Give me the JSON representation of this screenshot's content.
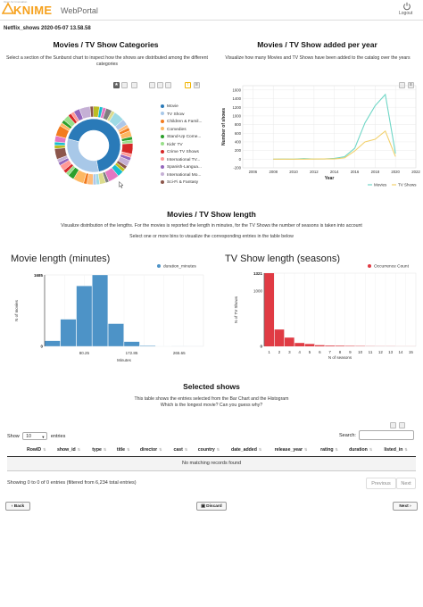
{
  "header": {
    "logo_tagline": "Open for Innovation",
    "logo_text": "KNIME",
    "logo_portal": "WebPortal",
    "logout_label": "Logout"
  },
  "doc_title": "Netflix_shows 2020-05-07 13.58.58",
  "categories": {
    "title": "Movies / TV Show Categories",
    "description": "Select a section of the Sunburst chart to inspect how the shows are distributed among the different categories",
    "legend": [
      {
        "label": "Movie",
        "color": "#2a7ab8"
      },
      {
        "label": "TV Show",
        "color": "#a8c8e8"
      },
      {
        "label": "Children & Famil...",
        "color": "#f27b1e"
      },
      {
        "label": "Comedies",
        "color": "#fdb863"
      },
      {
        "label": "Stand-Up Come...",
        "color": "#2ca02c"
      },
      {
        "label": "Kids' TV",
        "color": "#98df8a"
      },
      {
        "label": "Crime TV Shows",
        "color": "#d62728"
      },
      {
        "label": "International TV...",
        "color": "#ff9896"
      },
      {
        "label": "Spanish-Langua...",
        "color": "#9467bd"
      },
      {
        "label": "International Mo...",
        "color": "#c5b0d5"
      },
      {
        "label": "Sci-Fi & Fantasy",
        "color": "#8c564b"
      }
    ]
  },
  "added_chart": {
    "title": "Movies / TV Show added per year",
    "description": "Visualize how many Movies and TV Shows have been added to the catalog over the years",
    "chart_data": {
      "type": "line",
      "xlabel": "Year",
      "ylabel": "Number of shows",
      "xlim": [
        2005,
        2022
      ],
      "ylim": [
        -200,
        1700
      ],
      "x_ticks": [
        "2006",
        "2008",
        "2010",
        "2012",
        "2014",
        "2016",
        "2018",
        "2020",
        "2022"
      ],
      "y_ticks": [
        "-200",
        "0",
        "200",
        "400",
        "600",
        "800",
        "1000",
        "1200",
        "1400",
        "1600"
      ],
      "legend_position": "bottom-right",
      "series": [
        {
          "name": "Movies",
          "color": "#6fd6c6",
          "x": [
            2008,
            2009,
            2010,
            2011,
            2012,
            2013,
            2014,
            2015,
            2016,
            2017,
            2018,
            2019,
            2020
          ],
          "y": [
            1,
            2,
            1,
            13,
            4,
            6,
            19,
            56,
            253,
            839,
            1237,
            1497,
            130
          ]
        },
        {
          "name": "TV Shows",
          "color": "#f2d06b",
          "x": [
            2008,
            2009,
            2010,
            2011,
            2012,
            2013,
            2014,
            2015,
            2016,
            2017,
            2018,
            2019,
            2020
          ],
          "y": [
            1,
            0,
            0,
            0,
            3,
            6,
            6,
            30,
            190,
            400,
            460,
            650,
            60
          ]
        }
      ]
    }
  },
  "length_section": {
    "title": "Movies / TV Show length",
    "description1": "Visualize distribution of the lengths. For the movies is reported the length in minutes, for the TV Shows the number of seasons is taken into account",
    "description2": "Select one or more bins to visualize the corresponding entries in the table below"
  },
  "movie_hist": {
    "title": "Movie length (minutes)",
    "chart_data": {
      "type": "bar",
      "xlabel": "Minutes",
      "ylabel": "N of movies",
      "series_name": "duration_minutes",
      "color": "#4d93c7",
      "y_max_label": "1685",
      "y_zero_label": "0",
      "ylim": [
        0,
        1685
      ],
      "x_ticks": [
        "80.25",
        "172.85",
        "265.65"
      ],
      "bins": [
        {
          "x0": 3,
          "x1": 34,
          "v": 133
        },
        {
          "x0": 34,
          "x1": 65,
          "v": 640
        },
        {
          "x0": 65,
          "x1": 96,
          "v": 1425
        },
        {
          "x0": 96,
          "x1": 127,
          "v": 1685
        },
        {
          "x0": 127,
          "x1": 158,
          "v": 536
        },
        {
          "x0": 158,
          "x1": 189,
          "v": 112
        },
        {
          "x0": 189,
          "x1": 220,
          "v": 18
        },
        {
          "x0": 220,
          "x1": 251,
          "v": 5
        },
        {
          "x0": 251,
          "x1": 282,
          "v": 2
        },
        {
          "x0": 282,
          "x1": 313,
          "v": 1
        }
      ],
      "xlim": [
        3,
        313
      ]
    }
  },
  "tv_hist": {
    "title": "TV Show length (seasons)",
    "chart_data": {
      "type": "bar",
      "xlabel": "N of seasons",
      "ylabel": "N of TV Shows",
      "series_name": "Occurrence Count",
      "color": "#e03b44",
      "y_max_label": "1321",
      "y_tick_label": "1000",
      "y_zero_label": "0",
      "ylim": [
        0,
        1321
      ],
      "categories": [
        "1",
        "2",
        "3",
        "4",
        "5",
        "6",
        "7",
        "8",
        "9",
        "10",
        "11",
        "12",
        "13",
        "14",
        "15"
      ],
      "values": [
        1321,
        304,
        158,
        61,
        43,
        21,
        13,
        11,
        8,
        6,
        3,
        2,
        2,
        1,
        1
      ]
    }
  },
  "selected": {
    "title": "Selected shows",
    "description1": "This table shows the entries selected from the Bar Chart and the Histogram",
    "description2": "Which is the longest movie? Can you guess why?",
    "show_label": "Show",
    "show_value": "10",
    "entries_label": "entries",
    "search_label": "Search:",
    "columns": [
      "RowID",
      "show_id",
      "type",
      "title",
      "director",
      "cast",
      "country",
      "date_added",
      "release_year",
      "rating",
      "duration",
      "listed_in"
    ],
    "empty_message": "No matching records found",
    "info": "Showing 0 to 0 of 0 entries (filtered from 6,234 total entries)",
    "prev_label": "Previous",
    "next_label": "Next"
  },
  "footer": {
    "back_label": "Back",
    "discard_label": "Discard",
    "next_label": "Next"
  }
}
